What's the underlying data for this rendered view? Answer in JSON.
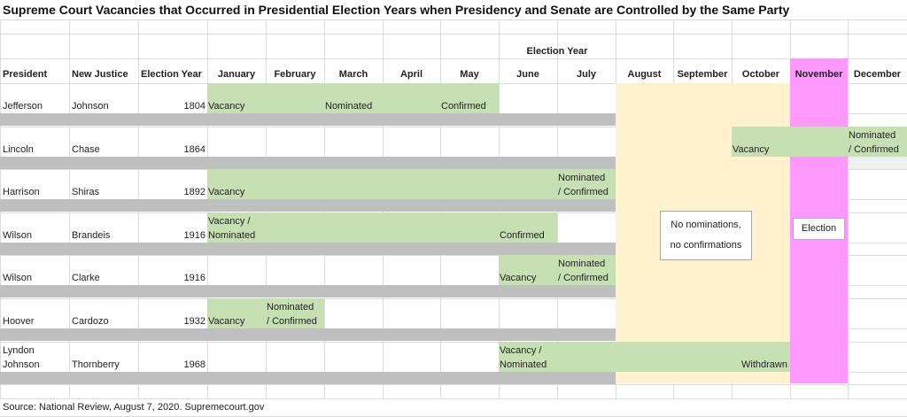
{
  "title": "Supreme Court Vacancies that Occurred in Presidential Election Years when Presidency and Senate are Controlled by the Same Party",
  "group_header": "Election Year",
  "columns": [
    "President",
    "New Justice",
    "Election Year"
  ],
  "months": [
    "January",
    "February",
    "March",
    "April",
    "May",
    "June",
    "July",
    "August",
    "September",
    "October",
    "November",
    "December"
  ],
  "rows": [
    {
      "president": [
        "Jefferson"
      ],
      "justice": "Johnson",
      "year": "1804",
      "span": [
        1,
        5
      ],
      "events": [
        {
          "month": 1,
          "text": [
            "Vacancy"
          ]
        },
        {
          "month": 3,
          "text": [
            "Nominated"
          ]
        },
        {
          "month": 5,
          "text": [
            "Confirmed"
          ]
        }
      ]
    },
    {
      "president": [
        "Lincoln"
      ],
      "justice": "Chase",
      "year": "1864",
      "span": [
        10,
        12
      ],
      "events": [
        {
          "month": 10,
          "text": [
            "Vacancy"
          ]
        },
        {
          "month": 12,
          "text": [
            "Nominated",
            "/ Confirmed"
          ]
        }
      ]
    },
    {
      "president": [
        "Harrison"
      ],
      "justice": "Shiras",
      "year": "1892",
      "span": [
        1,
        7
      ],
      "events": [
        {
          "month": 1,
          "text": [
            "Vacancy"
          ]
        },
        {
          "month": 7,
          "text": [
            "Nominated",
            "/ Confirmed"
          ]
        }
      ]
    },
    {
      "president": [
        "Wilson"
      ],
      "justice": "Brandeis",
      "year": "1916",
      "span": [
        1,
        6
      ],
      "events": [
        {
          "month": 1,
          "text": [
            "Vacancy /",
            "Nominated"
          ]
        },
        {
          "month": 6,
          "text": [
            "Confirmed"
          ]
        }
      ]
    },
    {
      "president": [
        "Wilson"
      ],
      "justice": "Clarke",
      "year": "1916",
      "span": [
        6,
        7
      ],
      "events": [
        {
          "month": 6,
          "text": [
            "Vacancy"
          ]
        },
        {
          "month": 7,
          "text": [
            "Nominated",
            "/ Confirmed"
          ]
        }
      ]
    },
    {
      "president": [
        "Hoover"
      ],
      "justice": "Cardozo",
      "year": "1932",
      "span": [
        1,
        2
      ],
      "events": [
        {
          "month": 1,
          "text": [
            "Vacancy"
          ]
        },
        {
          "month": 2,
          "text": [
            "Nominated",
            "/ Confirmed"
          ]
        }
      ]
    },
    {
      "president": [
        "Lyndon",
        "Johnson"
      ],
      "justice": "Thornberry",
      "year": "1968",
      "span": [
        6,
        10
      ],
      "events": [
        {
          "month": 6,
          "text": [
            "Vacancy /",
            "Nominated"
          ]
        },
        {
          "month": 10,
          "text": [
            "Withdrawn"
          ],
          "align": "right"
        }
      ]
    }
  ],
  "no_activity_note": [
    "No nominations,",
    "no confirmations"
  ],
  "election_label": "Election",
  "source": "Source: National Review, August 7, 2020. Supremecourt.gov",
  "colors": {
    "activity": "#c6e0b4",
    "no_activity_period": "#fff2cc",
    "election_month": "#ff99ff",
    "row_separator": "#bfbfbf"
  }
}
